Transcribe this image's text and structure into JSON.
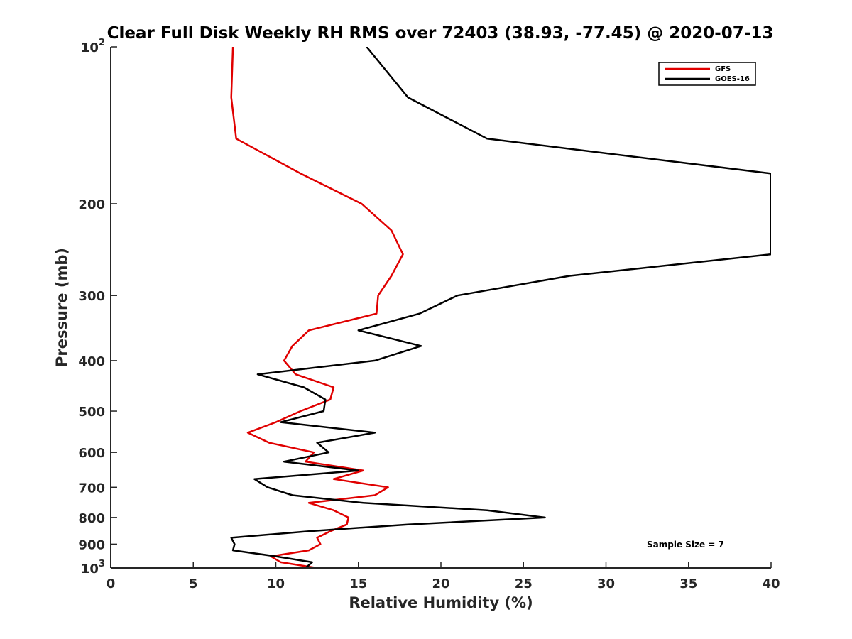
{
  "chart_data": {
    "type": "line",
    "title": "Clear Full Disk Weekly RH RMS over 72403 (38.93, -77.45) @ 2020-07-13",
    "xlabel": "Relative Humidity (%)",
    "ylabel": "Pressure (mb)",
    "xlim": [
      0,
      40
    ],
    "ylim": [
      100,
      1000
    ],
    "y_scale": "log",
    "y_reversed": true,
    "grid": false,
    "legend_location": "top-right",
    "x_ticks": [
      0,
      5,
      10,
      15,
      20,
      25,
      30,
      35,
      40
    ],
    "x_tick_labels": [
      "0",
      "5",
      "10",
      "15",
      "20",
      "25",
      "30",
      "35",
      "40"
    ],
    "y_ticks": [
      100,
      200,
      300,
      400,
      500,
      600,
      700,
      800,
      900,
      1000
    ],
    "y_tick_labels": [
      {
        "base": "10",
        "exp": "2"
      },
      {
        "base": "200",
        "exp": ""
      },
      {
        "base": "300",
        "exp": ""
      },
      {
        "base": "400",
        "exp": ""
      },
      {
        "base": "500",
        "exp": ""
      },
      {
        "base": "600",
        "exp": ""
      },
      {
        "base": "700",
        "exp": ""
      },
      {
        "base": "800",
        "exp": ""
      },
      {
        "base": "900",
        "exp": ""
      },
      {
        "base": "10",
        "exp": "3"
      }
    ],
    "annotation": "Sample Size = 7",
    "series": [
      {
        "name": "GFS",
        "color": "#e00000",
        "points": [
          [
            7.4,
            100
          ],
          [
            7.3,
            125
          ],
          [
            7.6,
            150
          ],
          [
            11.5,
            175
          ],
          [
            15.2,
            200
          ],
          [
            17.0,
            225
          ],
          [
            17.7,
            250
          ],
          [
            17.0,
            275
          ],
          [
            16.2,
            300
          ],
          [
            16.1,
            325
          ],
          [
            12.0,
            350
          ],
          [
            11.0,
            375
          ],
          [
            10.5,
            400
          ],
          [
            11.2,
            425
          ],
          [
            13.5,
            450
          ],
          [
            13.3,
            475
          ],
          [
            11.5,
            500
          ],
          [
            10.0,
            525
          ],
          [
            8.3,
            550
          ],
          [
            9.6,
            575
          ],
          [
            12.3,
            600
          ],
          [
            11.8,
            625
          ],
          [
            15.3,
            650
          ],
          [
            13.5,
            675
          ],
          [
            16.8,
            700
          ],
          [
            16.0,
            725
          ],
          [
            12.0,
            750
          ],
          [
            13.5,
            775
          ],
          [
            14.4,
            800
          ],
          [
            14.3,
            825
          ],
          [
            13.3,
            850
          ],
          [
            12.5,
            875
          ],
          [
            12.7,
            900
          ],
          [
            12.0,
            925
          ],
          [
            9.7,
            950
          ],
          [
            10.3,
            975
          ],
          [
            12.5,
            1000
          ]
        ]
      },
      {
        "name": "GOES-16",
        "color": "#000000",
        "points": [
          [
            15.5,
            100
          ],
          [
            18.0,
            125
          ],
          [
            22.8,
            150
          ],
          [
            40.0,
            175
          ],
          [
            40.0,
            200
          ],
          [
            40.0,
            225
          ],
          [
            40.0,
            250
          ],
          [
            27.8,
            275
          ],
          [
            21.0,
            300
          ],
          [
            18.7,
            325
          ],
          [
            15.0,
            350
          ],
          [
            18.8,
            375
          ],
          [
            16.0,
            400
          ],
          [
            8.9,
            425
          ],
          [
            11.7,
            450
          ],
          [
            13.0,
            475
          ],
          [
            12.9,
            500
          ],
          [
            10.3,
            525
          ],
          [
            16.0,
            550
          ],
          [
            12.5,
            575
          ],
          [
            13.2,
            600
          ],
          [
            10.5,
            625
          ],
          [
            15.0,
            650
          ],
          [
            8.7,
            675
          ],
          [
            9.5,
            700
          ],
          [
            11.0,
            725
          ],
          [
            15.3,
            750
          ],
          [
            22.8,
            775
          ],
          [
            26.3,
            800
          ],
          [
            18.0,
            825
          ],
          [
            12.0,
            850
          ],
          [
            7.3,
            875
          ],
          [
            7.5,
            900
          ],
          [
            7.4,
            925
          ],
          [
            10.0,
            950
          ],
          [
            12.2,
            975
          ],
          [
            11.8,
            1000
          ]
        ]
      }
    ]
  }
}
